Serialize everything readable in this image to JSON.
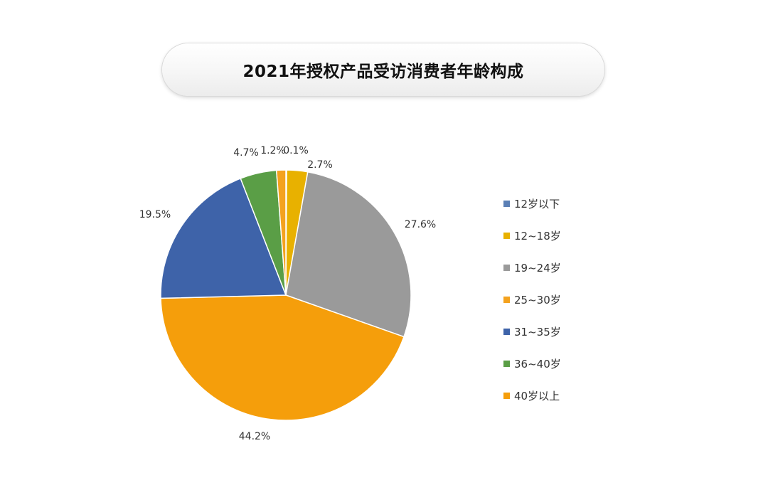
{
  "title": "2021年授权产品受访消费者年龄构成",
  "colors": {
    "12岁以下": "#5b7fb5",
    "12~18岁": "#e8b100",
    "19~24岁": "#9a9a9a",
    "25~30岁": "#f4a21e",
    "31~35岁": "#3e63a9",
    "36~40岁": "#5a9e46",
    "40岁以上": "#f59e0b"
  },
  "chart_data": {
    "type": "pie",
    "title": "2021年授权产品受访消费者年龄构成",
    "legend_position": "right",
    "categories": [
      "12岁以下",
      "12~18岁",
      "19~24岁",
      "40岁以上",
      "31~35岁",
      "36~40岁",
      "25~30岁"
    ],
    "values": [
      0.1,
      2.7,
      27.6,
      44.2,
      19.5,
      4.7,
      1.2
    ],
    "labels": [
      "0.1%",
      "2.7%",
      "27.6%",
      "44.2%",
      "19.5%",
      "4.7%",
      "1.2%"
    ],
    "legend": [
      "12岁以下",
      "12~18岁",
      "19~24岁",
      "25~30岁",
      "31~35岁",
      "36~40岁",
      "40岁以上"
    ]
  }
}
